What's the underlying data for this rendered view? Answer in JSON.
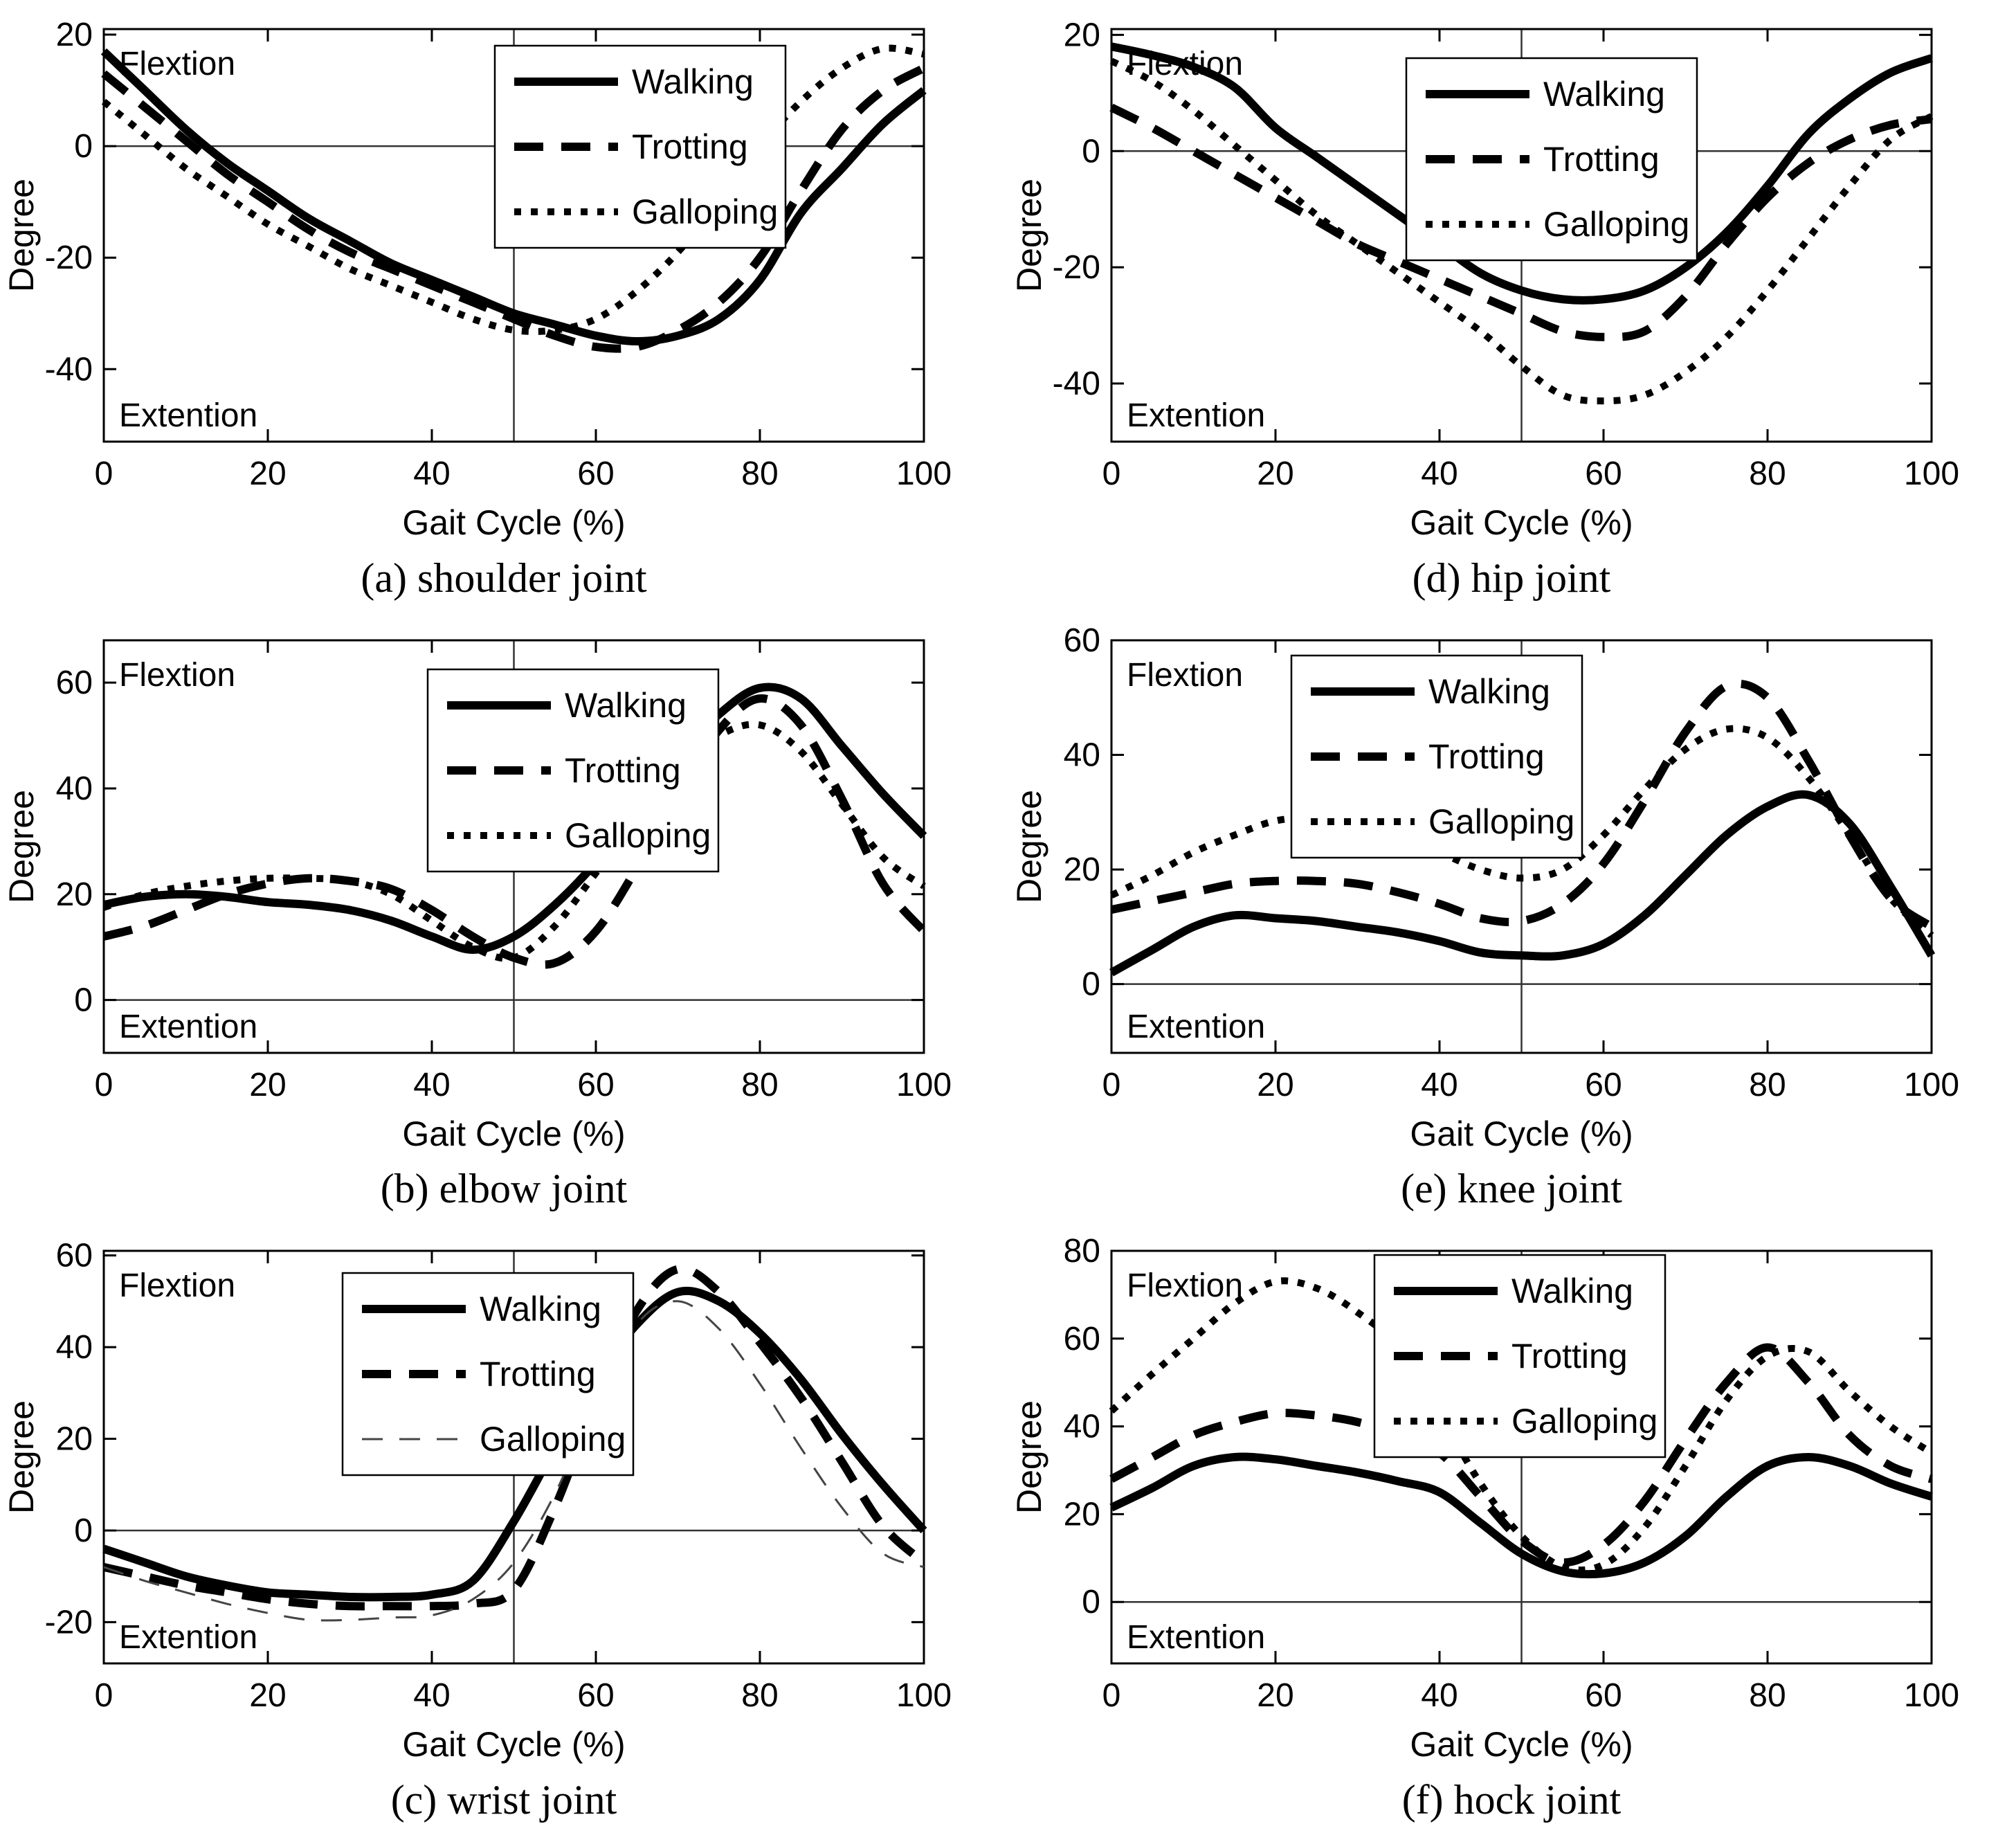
{
  "figure": {
    "ylabel": "Degree",
    "xlabel": "Gait Cycle (%)",
    "flexion_label": "Flextion",
    "extension_label": "Extention",
    "line_color": "#000000",
    "background_color": "#ffffff",
    "legend_entries": [
      "Walking",
      "Trotting",
      "Galloping"
    ]
  },
  "chart_data": [
    {
      "type": "line",
      "caption": "(a) shoulder joint",
      "xlabel": "Gait Cycle (%)",
      "ylabel": "Degree",
      "annotations": {
        "top_left": "Flextion",
        "bottom_left": "Extention"
      },
      "x": [
        0,
        5,
        10,
        15,
        20,
        25,
        30,
        35,
        40,
        45,
        50,
        55,
        60,
        65,
        70,
        75,
        80,
        85,
        90,
        95,
        100
      ],
      "xticks": [
        0,
        20,
        40,
        60,
        80,
        100
      ],
      "yticks": [
        20,
        0,
        -20,
        -40
      ],
      "ylim": [
        -53,
        21
      ],
      "ref_lines": {
        "horizontal_at": 0,
        "vertical_at": 50
      },
      "legend": {
        "position": "top-right",
        "right": 1135,
        "top": 66
      },
      "series": [
        {
          "name": "Walking",
          "style": "solid",
          "values": [
            17,
            10,
            3,
            -3,
            -8,
            -13,
            -17,
            -21,
            -24,
            -27,
            -30,
            -32,
            -34,
            -35,
            -34,
            -31,
            -24,
            -12,
            -4,
            4,
            10
          ]
        },
        {
          "name": "Trotting",
          "style": "dashed",
          "values": [
            13,
            7,
            1,
            -5,
            -10,
            -15,
            -19,
            -22,
            -25,
            -28,
            -31,
            -34,
            -36,
            -36,
            -33,
            -28,
            -20,
            -8,
            3,
            10,
            14
          ]
        },
        {
          "name": "Galloping",
          "style": "dotted",
          "values": [
            8,
            2,
            -4,
            -9,
            -14,
            -18,
            -22,
            -25,
            -28,
            -31,
            -33,
            -33,
            -31,
            -26,
            -19,
            -10,
            0,
            8,
            14,
            17.5,
            16.5
          ]
        }
      ]
    },
    {
      "type": "line",
      "caption": "(b) elbow joint",
      "xlabel": "Gait Cycle (%)",
      "ylabel": "Degree",
      "annotations": {
        "top_left": "Flextion",
        "bottom_left": "Extention"
      },
      "x": [
        0,
        5,
        10,
        15,
        20,
        25,
        30,
        35,
        40,
        45,
        50,
        55,
        60,
        65,
        70,
        75,
        80,
        85,
        90,
        95,
        100
      ],
      "xticks": [
        0,
        20,
        40,
        60,
        80,
        100
      ],
      "yticks": [
        60,
        40,
        20,
        0
      ],
      "ylim": [
        -10,
        68
      ],
      "ref_lines": {
        "horizontal_at": 0,
        "vertical_at": 50
      },
      "legend": {
        "position": "top-right",
        "right": 1038,
        "top": 84
      },
      "series": [
        {
          "name": "Walking",
          "style": "solid",
          "values": [
            18,
            19.5,
            20,
            19.5,
            18.5,
            18,
            17,
            15,
            12,
            9.5,
            12,
            18,
            26,
            36,
            46,
            54,
            59,
            57,
            48,
            39,
            31
          ]
        },
        {
          "name": "Trotting",
          "style": "dashed",
          "values": [
            12,
            14,
            17,
            20,
            22,
            23,
            22.5,
            21,
            17,
            12,
            8,
            7,
            13,
            25,
            39,
            51,
            57,
            52,
            38,
            22,
            13
          ]
        },
        {
          "name": "Galloping",
          "style": "dotted",
          "values": [
            17.5,
            20,
            21.5,
            22.5,
            23,
            23,
            22.5,
            20,
            15,
            10,
            8,
            14,
            24,
            34,
            44,
            50,
            52,
            47,
            37,
            27,
            21.5
          ]
        }
      ]
    },
    {
      "type": "line",
      "caption": "(c) wrist joint",
      "xlabel": "Gait Cycle (%)",
      "ylabel": "Degree",
      "annotations": {
        "top_left": "Flextion",
        "bottom_left": "Extention"
      },
      "x": [
        0,
        5,
        10,
        15,
        20,
        25,
        30,
        35,
        40,
        45,
        50,
        55,
        60,
        65,
        70,
        75,
        80,
        85,
        90,
        95,
        100
      ],
      "xticks": [
        0,
        20,
        40,
        60,
        80,
        100
      ],
      "yticks": [
        60,
        40,
        20,
        0,
        -20
      ],
      "ylim": [
        -29,
        61
      ],
      "ref_lines": {
        "horizontal_at": 0,
        "vertical_at": 50
      },
      "legend": {
        "position": "top-center",
        "right": 915,
        "top": 74
      },
      "series": [
        {
          "name": "Walking",
          "style": "solid",
          "values": [
            -4,
            -7,
            -10,
            -12,
            -13.5,
            -14,
            -14.5,
            -14.5,
            -14,
            -11,
            2,
            18,
            33,
            45,
            52,
            50,
            43,
            33,
            21,
            10,
            0
          ]
        },
        {
          "name": "Trotting",
          "style": "dashed",
          "values": [
            -8,
            -10,
            -12,
            -13.5,
            -15,
            -16,
            -16.5,
            -16.5,
            -16.5,
            -16,
            -13,
            5,
            28,
            48,
            57,
            52,
            41,
            29,
            15,
            1,
            -7
          ]
        },
        {
          "name": "Galloping",
          "style": "thin-dashed",
          "values": [
            -8,
            -11,
            -13.5,
            -16,
            -18,
            -19.5,
            -19.5,
            -19,
            -18.5,
            -15,
            -7,
            8,
            28,
            45,
            50,
            44,
            32,
            18,
            5,
            -5,
            -8
          ]
        }
      ]
    },
    {
      "type": "line",
      "caption": "(d) hip joint",
      "xlabel": "Gait Cycle (%)",
      "ylabel": "Degree",
      "annotations": {
        "top_left": "Flextion",
        "bottom_left": "Extention"
      },
      "x": [
        0,
        5,
        10,
        15,
        20,
        25,
        30,
        35,
        40,
        45,
        50,
        55,
        60,
        65,
        70,
        75,
        80,
        85,
        90,
        95,
        100
      ],
      "xticks": [
        0,
        20,
        40,
        60,
        80,
        100
      ],
      "yticks": [
        20,
        0,
        -20,
        -40
      ],
      "ylim": [
        -50,
        21
      ],
      "ref_lines": {
        "horizontal_at": 0,
        "vertical_at": 50
      },
      "legend": {
        "position": "top-right",
        "right": 996,
        "top": 84
      },
      "series": [
        {
          "name": "Walking",
          "style": "solid",
          "values": [
            18,
            16.5,
            14.5,
            11,
            4,
            -1,
            -6,
            -11,
            -16,
            -21,
            -24,
            -25.5,
            -25.5,
            -24,
            -20,
            -14,
            -6,
            3,
            9,
            13.5,
            16
          ]
        },
        {
          "name": "Trotting",
          "style": "dashed",
          "values": [
            7.5,
            4,
            0,
            -4,
            -8,
            -12,
            -16,
            -19,
            -22,
            -25,
            -28,
            -31,
            -32,
            -31,
            -25,
            -16,
            -8,
            -2,
            2,
            4.5,
            5.5
          ]
        },
        {
          "name": "Galloping",
          "style": "dotted",
          "values": [
            15.5,
            12,
            7,
            1,
            -5,
            -11,
            -16,
            -21,
            -26,
            -31,
            -37,
            -42,
            -43,
            -42,
            -38,
            -32,
            -24,
            -15,
            -6,
            2,
            6
          ]
        }
      ]
    },
    {
      "type": "line",
      "caption": "(e) knee joint",
      "xlabel": "Gait Cycle (%)",
      "ylabel": "Degree",
      "annotations": {
        "top_left": "Flextion",
        "bottom_left": "Extention"
      },
      "x": [
        0,
        5,
        10,
        15,
        20,
        25,
        30,
        35,
        40,
        45,
        50,
        55,
        60,
        65,
        70,
        75,
        80,
        85,
        90,
        95,
        100
      ],
      "xticks": [
        0,
        20,
        40,
        60,
        80,
        100
      ],
      "yticks": [
        60,
        40,
        20,
        0
      ],
      "ylim": [
        -12,
        60
      ],
      "ref_lines": {
        "horizontal_at": 0,
        "vertical_at": 50
      },
      "legend": {
        "position": "top-center",
        "right": 830,
        "top": 64
      },
      "series": [
        {
          "name": "Walking",
          "style": "solid",
          "values": [
            2,
            6,
            10,
            12,
            11.5,
            11,
            10,
            9,
            7.5,
            5.5,
            5,
            5,
            7,
            12,
            19,
            26,
            31,
            33,
            28,
            17,
            5
          ]
        },
        {
          "name": "Trotting",
          "style": "dashed",
          "values": [
            13,
            14.5,
            16,
            17.5,
            18,
            18,
            17.5,
            16,
            14,
            11.5,
            11,
            14,
            21,
            32,
            44,
            52,
            50,
            39,
            26,
            15,
            10
          ]
        },
        {
          "name": "Galloping",
          "style": "dotted",
          "values": [
            15.5,
            19,
            23,
            26,
            28.5,
            29,
            28,
            26,
            23,
            20,
            18.5,
            20,
            26,
            34,
            41,
            44.5,
            43,
            36,
            26,
            15,
            8.5
          ]
        }
      ]
    },
    {
      "type": "line",
      "caption": "(f) hock joint",
      "xlabel": "Gait Cycle (%)",
      "ylabel": "Degree",
      "annotations": {
        "top_left": "Flextion",
        "bottom_left": "Extention"
      },
      "x": [
        0,
        5,
        10,
        15,
        20,
        25,
        30,
        35,
        40,
        45,
        50,
        55,
        60,
        65,
        70,
        75,
        80,
        85,
        90,
        95,
        100
      ],
      "xticks": [
        0,
        20,
        40,
        60,
        80,
        100
      ],
      "yticks": [
        80,
        60,
        40,
        20,
        0
      ],
      "ylim": [
        -14,
        80
      ],
      "ref_lines": {
        "horizontal_at": 0,
        "vertical_at": 50
      },
      "legend": {
        "position": "top-center",
        "right": 950,
        "top": 48
      },
      "series": [
        {
          "name": "Walking",
          "style": "solid",
          "values": [
            21.5,
            26,
            31,
            33,
            32.5,
            31,
            29.5,
            27.5,
            25,
            18,
            11,
            7,
            6.5,
            9,
            15,
            24,
            31,
            33,
            31,
            27,
            24
          ]
        },
        {
          "name": "Trotting",
          "style": "dashed",
          "values": [
            28,
            33,
            38,
            41,
            43,
            42.5,
            41,
            38,
            34,
            24,
            14,
            9,
            13,
            23,
            37,
            50,
            58,
            50,
            38,
            31,
            28
          ]
        },
        {
          "name": "Galloping",
          "style": "dotted",
          "values": [
            43.5,
            52,
            60,
            68,
            73,
            71.5,
            66,
            58,
            43,
            27,
            15,
            8,
            8.5,
            17,
            31,
            46,
            56,
            57,
            48,
            40,
            34
          ]
        }
      ]
    }
  ]
}
